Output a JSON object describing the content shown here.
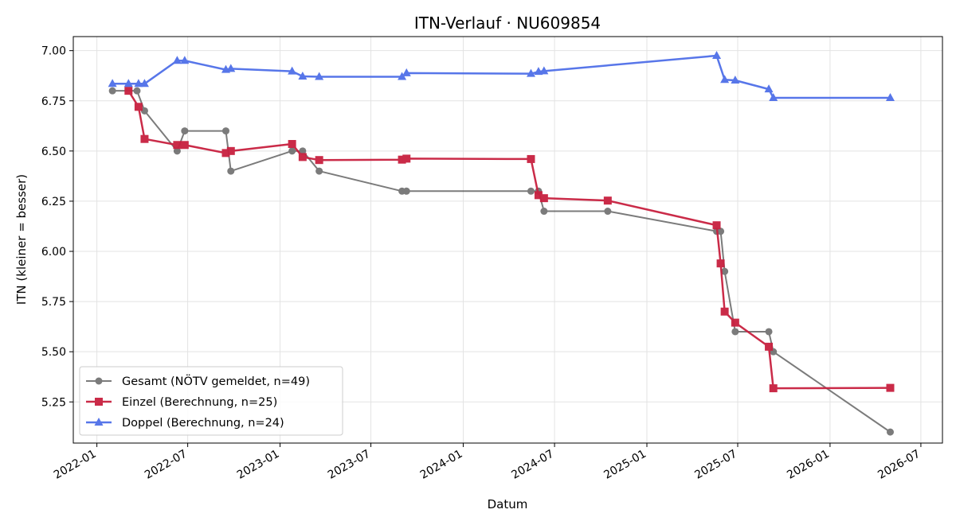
{
  "chart_data": {
    "type": "line",
    "title": "ITN-Verlauf · NU609854",
    "xlabel": "Datum",
    "ylabel": "ITN  (kleiner = besser)",
    "x_axis_type": "date",
    "xlim": [
      "2021-11-15",
      "2026-08-13"
    ],
    "ylim": [
      5.045,
      7.07
    ],
    "x_ticks": [
      "2022-01-01",
      "2022-07-01",
      "2023-01-01",
      "2023-07-01",
      "2024-01-01",
      "2024-07-01",
      "2025-01-01",
      "2025-07-01",
      "2026-01-01",
      "2026-07-01"
    ],
    "x_tick_labels": [
      "2022-01",
      "2022-07",
      "2023-01",
      "2023-07",
      "2024-01",
      "2024-07",
      "2025-01",
      "2025-07",
      "2026-01",
      "2026-07"
    ],
    "y_ticks": [
      5.25,
      5.5,
      5.75,
      6.0,
      6.25,
      6.5,
      6.75,
      7.0
    ],
    "y_tick_labels": [
      "5.25",
      "5.50",
      "5.75",
      "6.00",
      "6.25",
      "6.50",
      "6.75",
      "7.00"
    ],
    "grid": true,
    "legend_position": "lower-left",
    "series": [
      {
        "name": "Gesamt (NÖTV gemeldet, n=49)",
        "color": "#444444",
        "marker": "circle",
        "x": [
          "2022-02-01",
          "2022-03-22",
          "2022-04-06",
          "2022-06-10",
          "2022-06-25",
          "2022-09-15",
          "2022-09-25",
          "2023-01-25",
          "2023-02-15",
          "2023-03-20",
          "2023-09-01",
          "2023-09-10",
          "2024-05-15",
          "2024-05-30",
          "2024-06-10",
          "2024-10-15",
          "2025-05-20",
          "2025-05-28",
          "2025-06-05",
          "2025-06-26",
          "2025-09-01",
          "2025-09-10",
          "2026-05-01"
        ],
        "y": [
          6.8,
          6.8,
          6.7,
          6.5,
          6.6,
          6.6,
          6.4,
          6.5,
          6.5,
          6.4,
          6.3,
          6.3,
          6.3,
          6.3,
          6.2,
          6.2,
          6.1,
          6.1,
          5.9,
          5.6,
          5.6,
          5.5,
          5.1
        ]
      },
      {
        "name": "Einzel (Berechnung, n=25)",
        "color": "#c8203f",
        "marker": "square",
        "x": [
          "2022-03-05",
          "2022-03-25",
          "2022-04-06",
          "2022-06-10",
          "2022-06-25",
          "2022-09-15",
          "2022-09-25",
          "2023-01-25",
          "2023-02-15",
          "2023-03-20",
          "2023-09-01",
          "2023-09-10",
          "2024-05-15",
          "2024-05-30",
          "2024-06-10",
          "2024-10-15",
          "2025-05-20",
          "2025-05-28",
          "2025-06-05",
          "2025-06-26",
          "2025-09-01",
          "2025-09-10",
          "2026-05-01"
        ],
        "y": [
          6.8,
          6.72,
          6.56,
          6.53,
          6.53,
          6.49,
          6.5,
          6.535,
          6.47,
          6.455,
          6.457,
          6.462,
          6.46,
          6.28,
          6.265,
          6.253,
          6.13,
          5.94,
          5.7,
          5.645,
          5.525,
          5.318,
          5.32
        ]
      },
      {
        "name": "Doppel (Berechnung, n=24)",
        "color": "#4f6fe8",
        "marker": "triangle",
        "x": [
          "2022-02-01",
          "2022-03-05",
          "2022-03-25",
          "2022-04-06",
          "2022-06-10",
          "2022-06-25",
          "2022-09-15",
          "2022-09-25",
          "2023-01-25",
          "2023-02-15",
          "2023-03-20",
          "2023-09-01",
          "2023-09-10",
          "2024-05-15",
          "2024-05-30",
          "2024-06-10",
          "2025-05-20",
          "2025-06-05",
          "2025-06-26",
          "2025-09-01",
          "2025-09-10",
          "2026-05-01"
        ],
        "y": [
          6.835,
          6.835,
          6.835,
          6.835,
          6.95,
          6.95,
          6.905,
          6.91,
          6.897,
          6.872,
          6.87,
          6.87,
          6.888,
          6.885,
          6.895,
          6.898,
          6.975,
          6.855,
          6.852,
          6.808,
          6.765,
          6.765
        ]
      }
    ]
  }
}
